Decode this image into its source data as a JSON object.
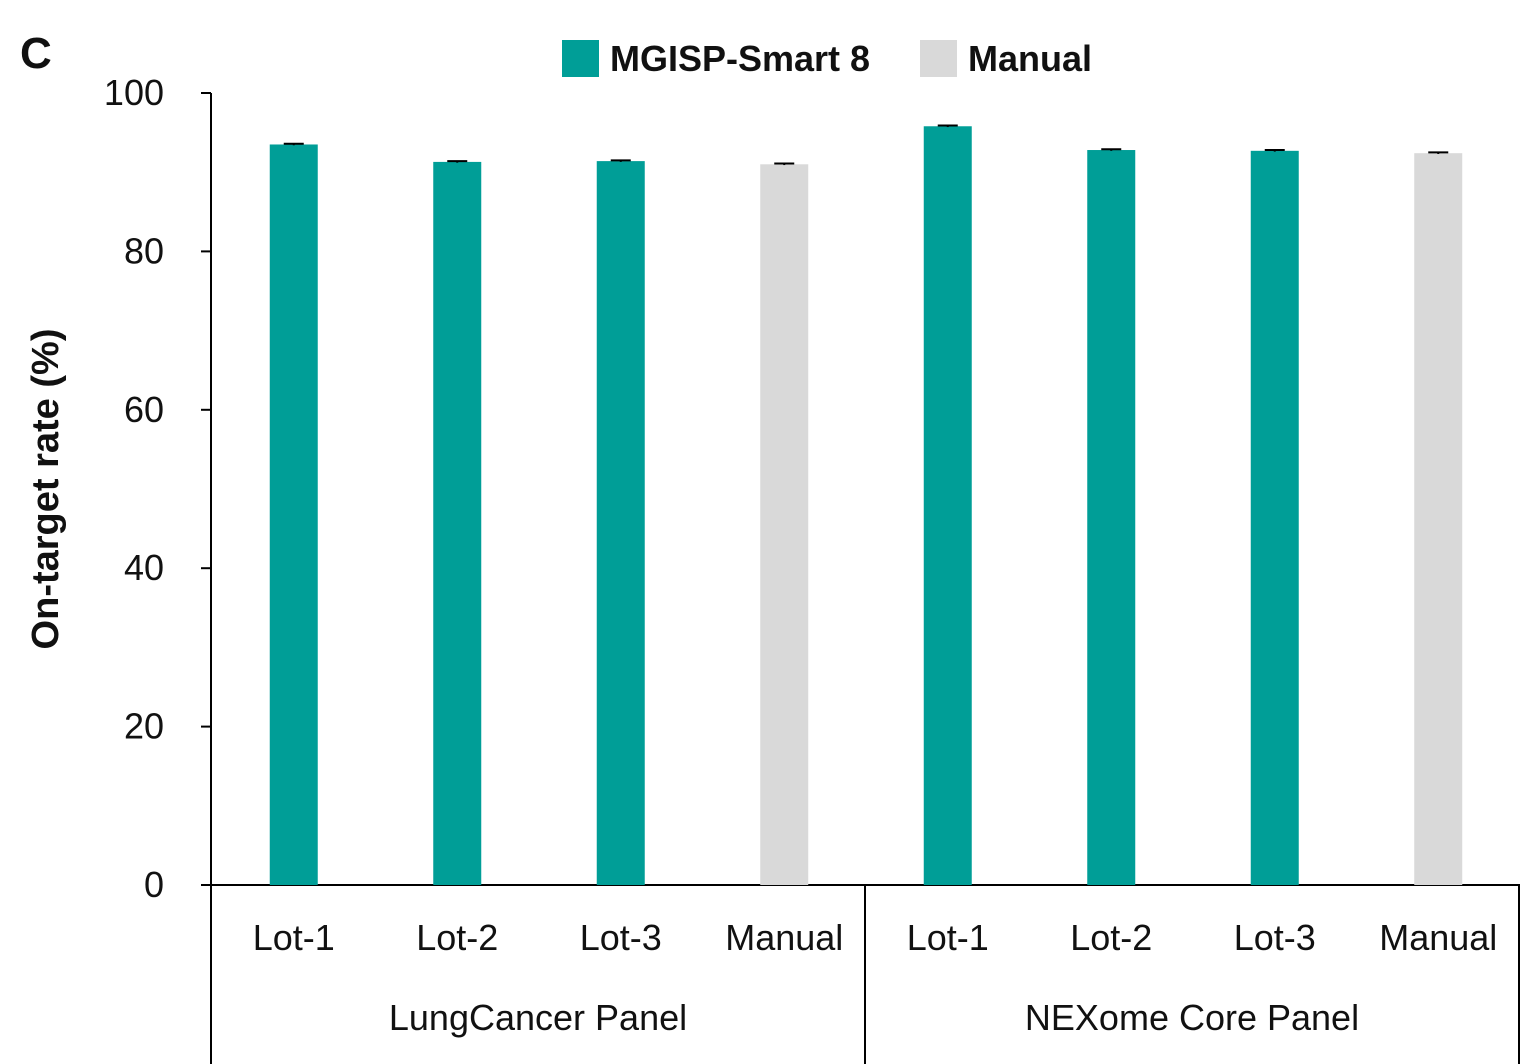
{
  "panel_label": "C",
  "chart_data": {
    "type": "bar",
    "ylabel": "On-target rate (%)",
    "ylim": [
      0,
      100
    ],
    "yticks": [
      0,
      20,
      40,
      60,
      80,
      100
    ],
    "grid": false,
    "legend_position": "top",
    "series": [
      {
        "name": "MGISP-Smart 8",
        "color": "#009E97"
      },
      {
        "name": "Manual",
        "color": "#D9D9D9"
      }
    ],
    "groups": [
      {
        "name": "LungCancer Panel",
        "bars": [
          {
            "category": "Lot-1",
            "series": "MGISP-Smart 8",
            "value": 93.5,
            "error": 0.1
          },
          {
            "category": "Lot-2",
            "series": "MGISP-Smart 8",
            "value": 91.3,
            "error": 0.1
          },
          {
            "category": "Lot-3",
            "series": "MGISP-Smart 8",
            "value": 91.4,
            "error": 0.1
          },
          {
            "category": "Manual",
            "series": "Manual",
            "value": 91.0,
            "error": 0.1
          }
        ]
      },
      {
        "name": "NEXome Core Panel",
        "bars": [
          {
            "category": "Lot-1",
            "series": "MGISP-Smart 8",
            "value": 95.8,
            "error": 0.1
          },
          {
            "category": "Lot-2",
            "series": "MGISP-Smart 8",
            "value": 92.8,
            "error": 0.1
          },
          {
            "category": "Lot-3",
            "series": "MGISP-Smart 8",
            "value": 92.7,
            "error": 0.1
          },
          {
            "category": "Manual",
            "series": "Manual",
            "value": 92.4,
            "error": 0.1
          }
        ]
      }
    ]
  }
}
